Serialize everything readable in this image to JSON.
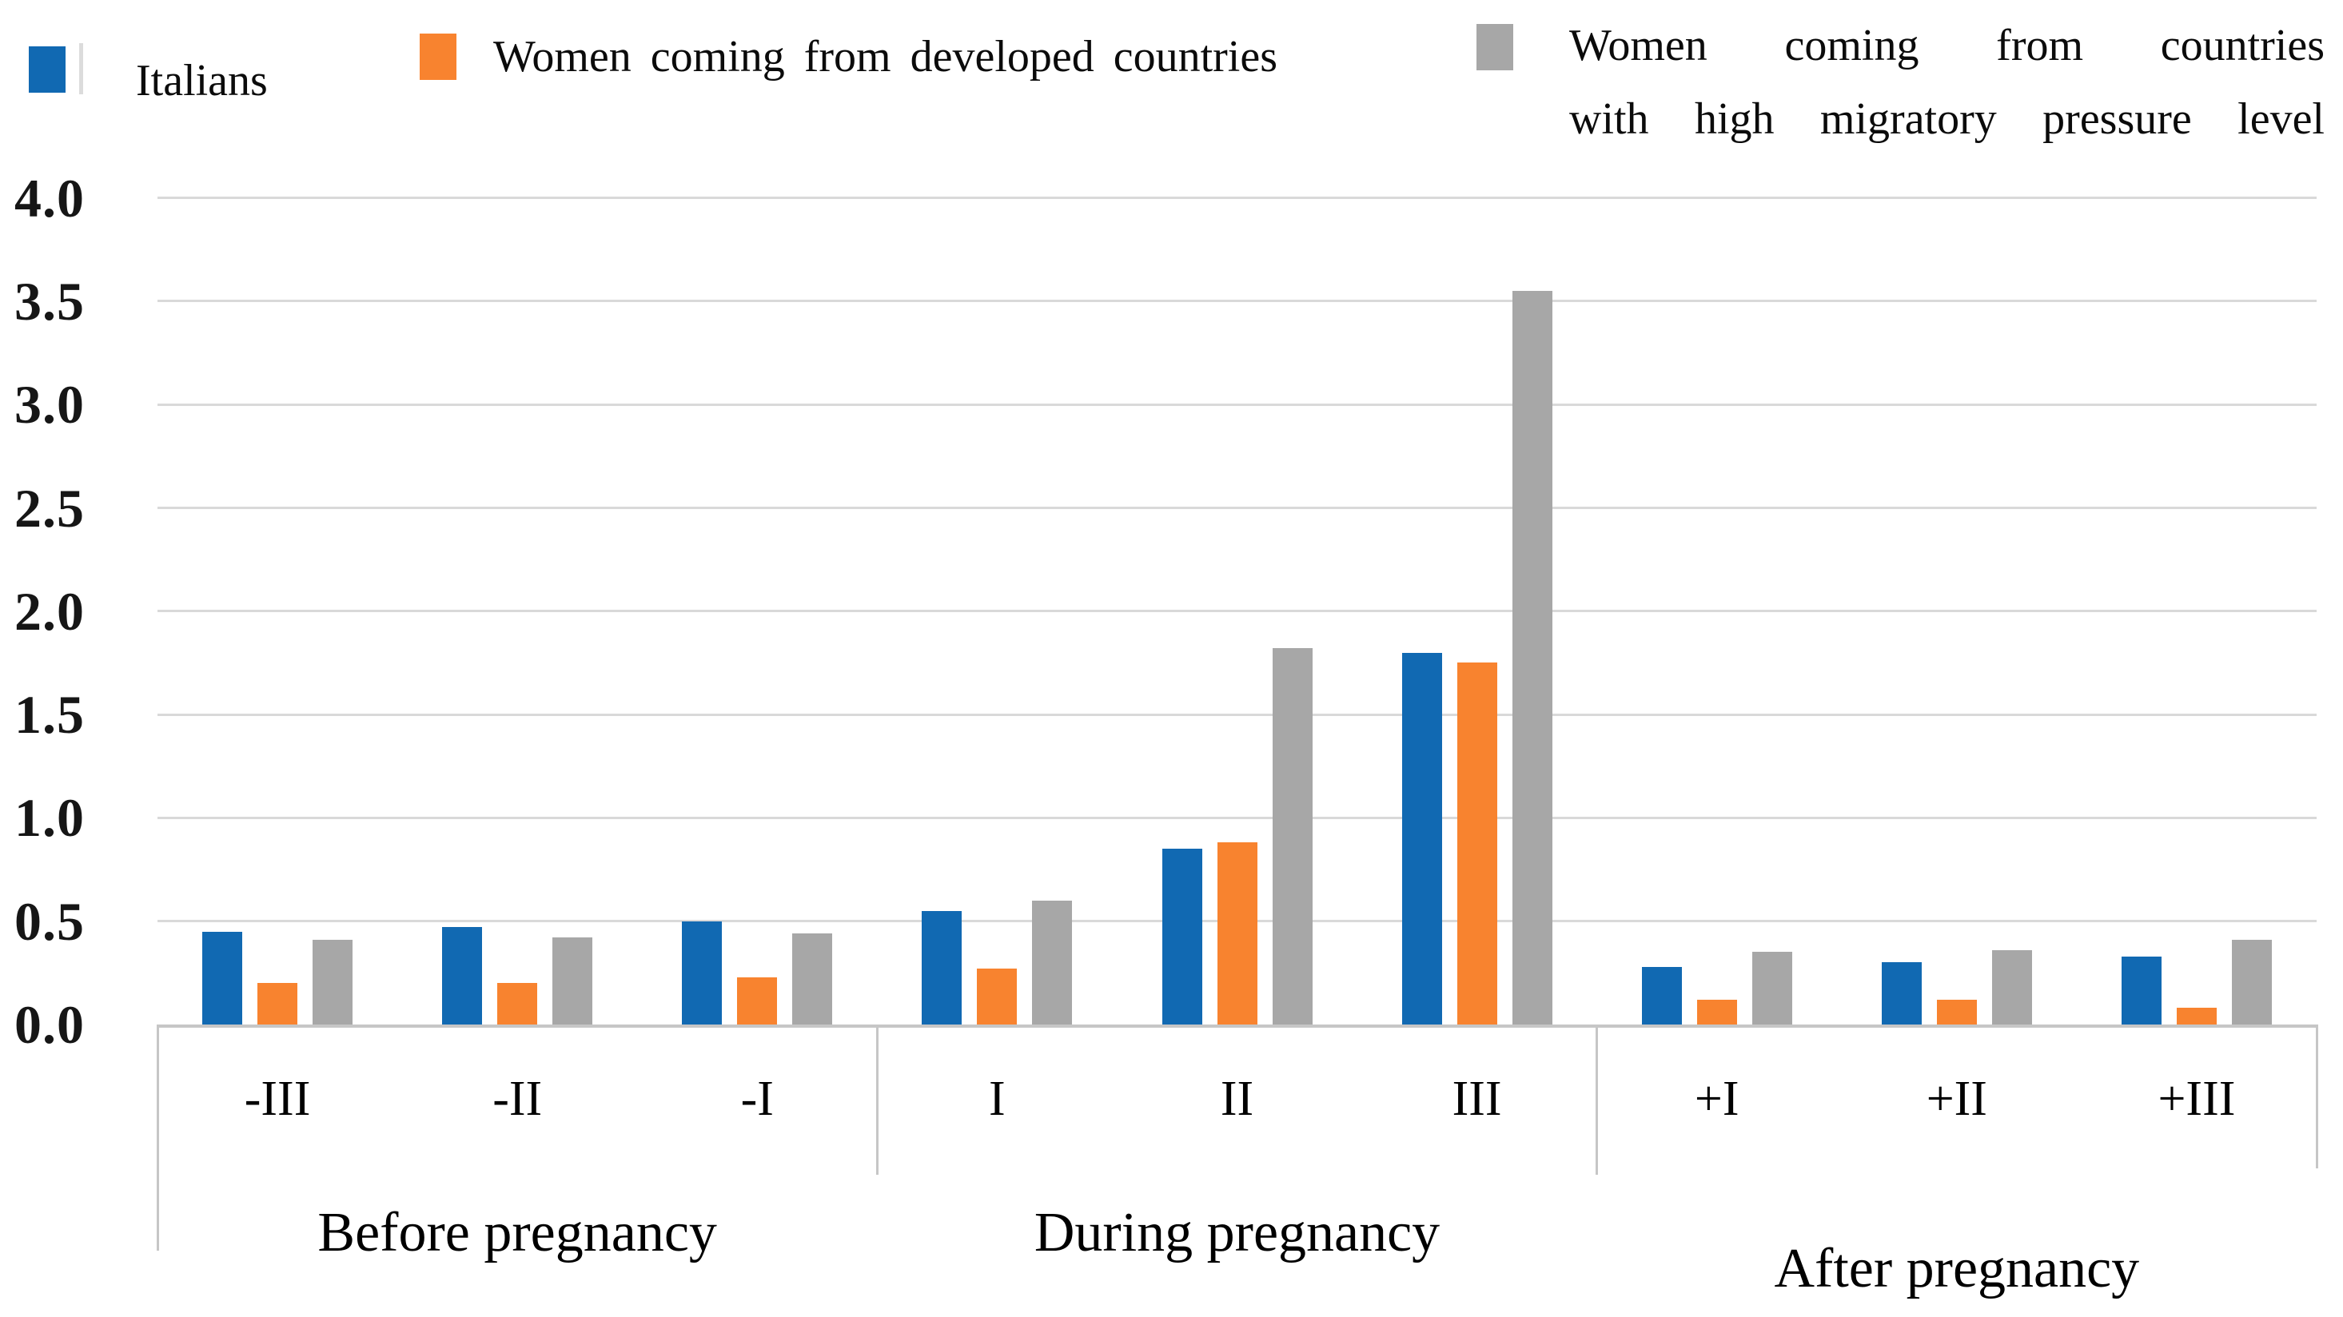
{
  "legend": {
    "items": [
      {
        "label": "Italians"
      },
      {
        "label": "Women coming from developed countries"
      },
      {
        "label": "Women coming from countries with high migratory pressure level",
        "lines": [
          "Women coming from countries",
          "with high migratory pressure level"
        ]
      }
    ]
  },
  "chart_data": {
    "type": "bar",
    "categories": [
      "-III",
      "-II",
      "-I",
      "I",
      "II",
      "III",
      "+I",
      "+II",
      "+III"
    ],
    "category_groups": [
      {
        "label": "Before pregnancy",
        "categories": [
          "-III",
          "-II",
          "-I"
        ]
      },
      {
        "label": "During pregnancy",
        "categories": [
          "I",
          "II",
          "III"
        ]
      },
      {
        "label": "After pregnancy",
        "categories": [
          "+I",
          "+II",
          "+III"
        ]
      }
    ],
    "series": [
      {
        "name": "Italians",
        "color": "#1169B2",
        "values": [
          0.45,
          0.47,
          0.5,
          0.55,
          0.85,
          1.8,
          0.28,
          0.3,
          0.33
        ]
      },
      {
        "name": "Women coming from developed countries",
        "color": "#F8832F",
        "values": [
          0.2,
          0.2,
          0.23,
          0.27,
          0.88,
          1.75,
          0.12,
          0.12,
          0.08
        ]
      },
      {
        "name": "Women coming from countries with high migratory pressure level",
        "color": "#A7A7A7",
        "values": [
          0.41,
          0.42,
          0.44,
          0.6,
          1.82,
          3.55,
          0.35,
          0.36,
          0.41
        ]
      }
    ],
    "title": "",
    "xlabel": "",
    "ylabel": "",
    "ylim": [
      0.0,
      4.0
    ],
    "y_ticks": [
      "4.0",
      "3.5",
      "3.0",
      "2.5",
      "2.0",
      "1.5",
      "1.0",
      "0.5",
      "0.0"
    ],
    "grid": true,
    "legend_position": "top",
    "colors": {
      "gridline": "#d9d9d9",
      "axis_line": "#c6c6c6",
      "text": "#0b0b0b"
    }
  }
}
